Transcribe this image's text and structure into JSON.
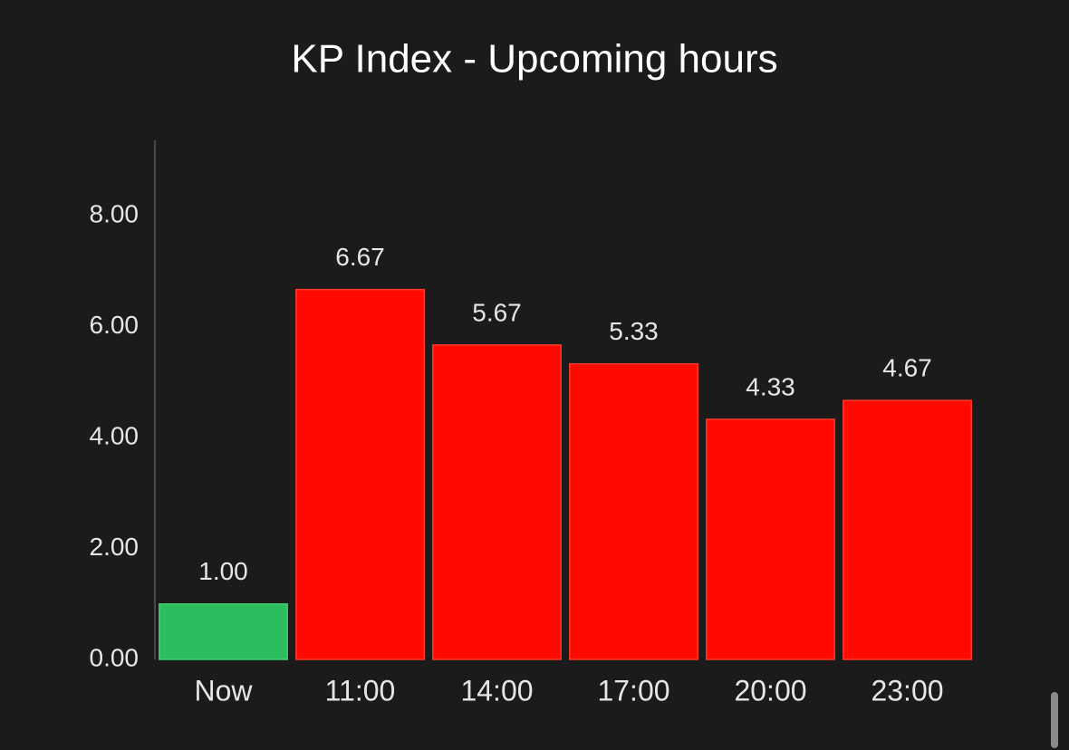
{
  "chart_data": {
    "type": "bar",
    "title": "KP Index - Upcoming hours",
    "categories": [
      "Now",
      "11:00",
      "14:00",
      "17:00",
      "20:00",
      "23:00"
    ],
    "values": [
      1.0,
      6.67,
      5.67,
      5.33,
      4.33,
      4.67
    ],
    "value_labels": [
      "1.00",
      "6.67",
      "5.67",
      "5.33",
      "4.33",
      "4.67"
    ],
    "colors": [
      "#2dbd5f",
      "#ff0a00",
      "#ff0a00",
      "#ff0a00",
      "#ff0a00",
      "#ff0a00"
    ],
    "ylim": [
      0,
      9.36
    ],
    "yticks": [
      {
        "value": 0,
        "label": "0.00"
      },
      {
        "value": 2,
        "label": "2.00"
      },
      {
        "value": 4,
        "label": "4.00"
      },
      {
        "value": 6,
        "label": "6.00"
      },
      {
        "value": 8,
        "label": "8.00"
      }
    ],
    "grid": false
  }
}
